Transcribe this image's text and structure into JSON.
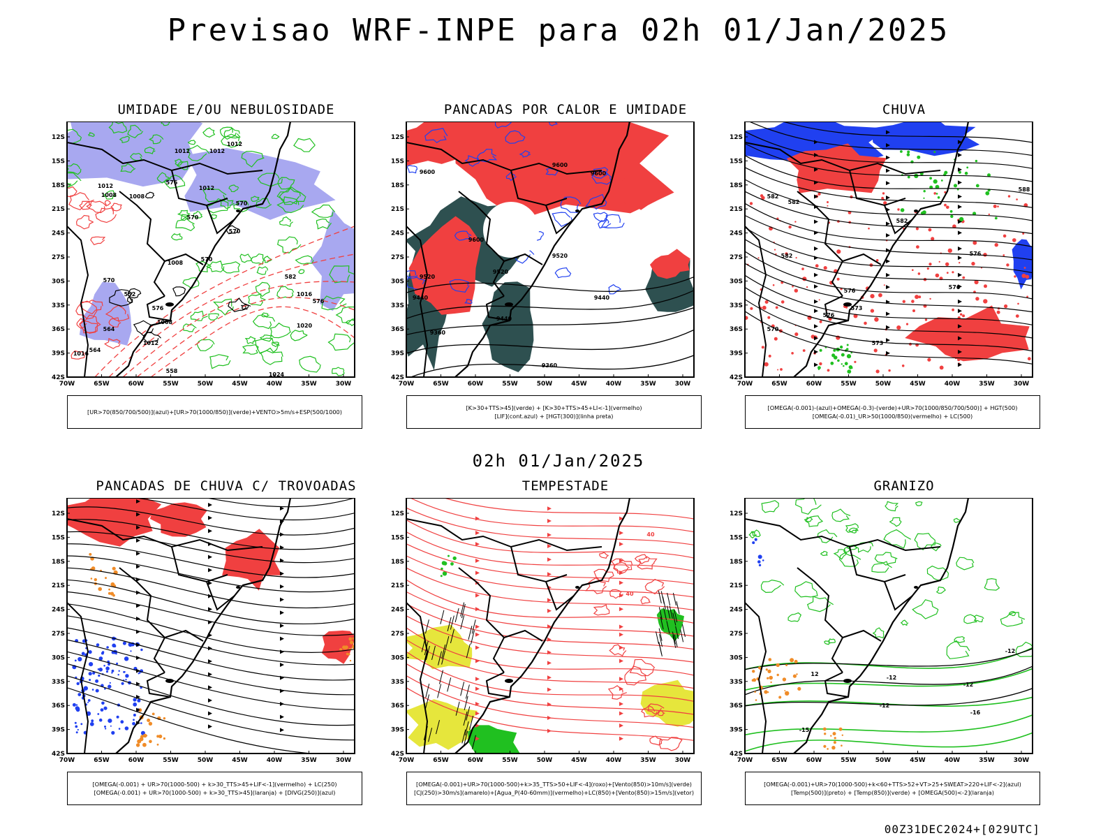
{
  "header": {
    "title": "Previsao WRF-INPE  para 02h 01/Jan/2025",
    "subtitle": "02h 01/Jan/2025",
    "footer": "00Z31DEC2024+[029UTC]"
  },
  "axes": {
    "lat_labels": [
      "12S",
      "15S",
      "18S",
      "21S",
      "24S",
      "27S",
      "30S",
      "33S",
      "36S",
      "39S",
      "42S"
    ],
    "lon_labels": [
      "70W",
      "65W",
      "60W",
      "55W",
      "50W",
      "45W",
      "40W",
      "35W",
      "30W"
    ]
  },
  "colors": {
    "red": "#f04040",
    "green": "#20c020",
    "blue": "#2040f0",
    "lavender": "#a8a8f0",
    "darkteal": "#2e5050",
    "yellow": "#e6e63c",
    "orange": "#f08c28"
  },
  "panels": [
    {
      "title": "UMIDADE E/OU NEBULOSIDADE",
      "legend": [
        "[UR>70(850/700/500)](azul)+[UR>70(1000/850)](verde)+VENTO>5m/s+ESP(500/1000)"
      ],
      "contour_labels": [
        "1012",
        "1012",
        "1012",
        "1012",
        "1008",
        "1008",
        "1008",
        "1008",
        "1012",
        "1016",
        "1020",
        "1012",
        "1016",
        "1024",
        "576",
        "570",
        "570",
        "570",
        "570",
        "576",
        "564",
        "564",
        "558",
        "552",
        "582",
        "576",
        "570"
      ]
    },
    {
      "title": "PANCADAS POR CALOR E UMIDADE",
      "legend": [
        "[K>30+TTS>45](verde)  +  [K>30+TTS>45+LI<-1](vermelho)",
        "[LIF](cont.azul)  +  [HGT(300)](linha preta)"
      ],
      "contour_labels": [
        "9600",
        "9600",
        "9600",
        "9600",
        "9520",
        "9520",
        "9520",
        "9440",
        "9440",
        "9440",
        "9360",
        "9360"
      ]
    },
    {
      "title": "CHUVA",
      "legend": [
        "[OMEGA(-0.001)-(azul)+OMEGA(-0.3)-(verde)+UR>70(1000/850/700/500)]  +  HGT(500)",
        "[OMEGA(-0.01)_UR>50(1000/850)(vermelho)  +  LC(500)"
      ],
      "contour_labels": [
        "582",
        "582",
        "582",
        "582",
        "576",
        "576",
        "576",
        "573",
        "573",
        "570",
        "576",
        "588"
      ]
    },
    {
      "title": "PANCADAS DE CHUVA C/ TROVOADAS",
      "legend": [
        "[OMEGA(-0.001)  +  UR>70(1000-500)  +  k>30_TTS>45+LIF<-1](vermelho)  +  LC(250)",
        "[OMEGA(-0.001)  +  UR>70(1000-500)  +  k>30_TTS>45](laranja)  +  [DIVG(250)](azul)"
      ],
      "contour_labels": []
    },
    {
      "title": "TEMPESTADE",
      "legend": [
        "[OMEGA(-0.001)+UR>70(1000-500)+k>35_TTS>50+LIF<-4](roxo)+[Vento(850)>10m/s](verde)",
        "[CJ(250)>30m/s](amarelo)+[Agua_P(40-60mm)](vermelho)+LC(850)+[Vento(850)>15m/s](vetor)"
      ],
      "contour_labels": [
        "40",
        "40"
      ]
    },
    {
      "title": "GRANIZO",
      "legend": [
        "[OMEGA(-0.001)+UR>70(1000-500)+k<60+TTS>52+VT>25+SWEAT>220+LIF<-2](azul)",
        "[Temp(500)](preto)  +  [Temp(850)](verde)  +  [OMEGA(500)<-2](laranja)"
      ],
      "contour_labels": [
        "-12",
        "-12",
        "-12",
        "-16",
        "-15",
        "-12",
        "12"
      ]
    }
  ]
}
